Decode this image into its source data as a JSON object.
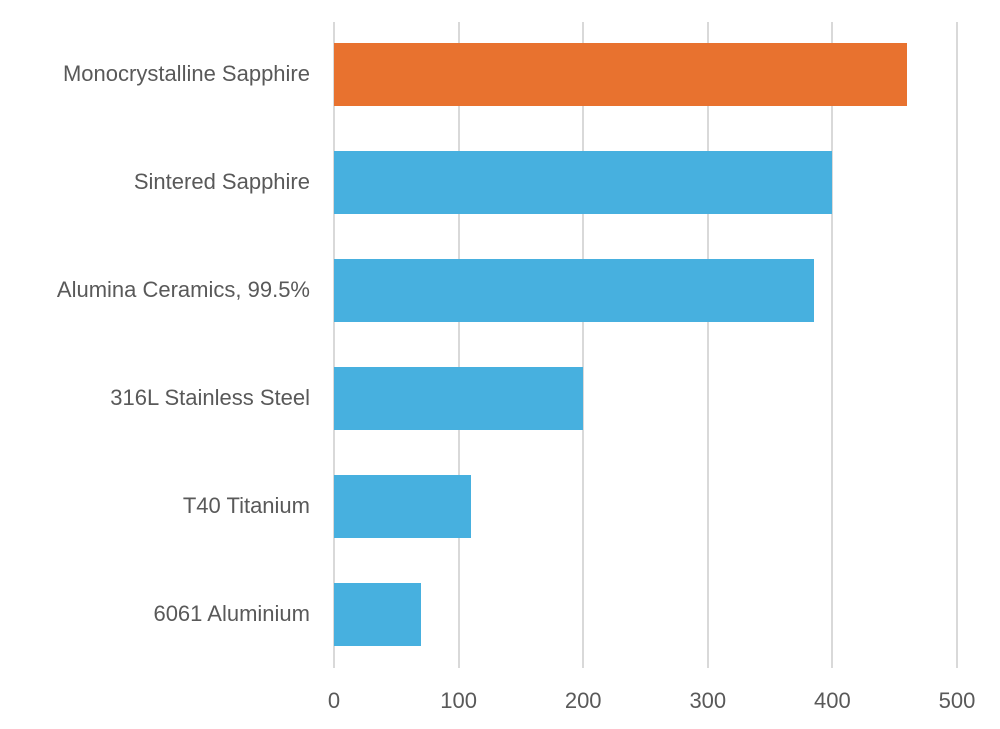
{
  "chart_data": {
    "type": "bar",
    "orientation": "horizontal",
    "title": "",
    "xlabel": "",
    "ylabel": "",
    "categories": [
      "Monocrystalline Sapphire",
      "Sintered Sapphire",
      "Alumina Ceramics, 99.5%",
      "316L Stainless Steel",
      "T40 Titanium",
      "6061 Aluminium"
    ],
    "values": [
      460,
      400,
      385,
      200,
      110,
      70
    ],
    "colors": [
      "#e8722f",
      "#47b0df",
      "#47b0df",
      "#47b0df",
      "#47b0df",
      "#47b0df"
    ],
    "xlim": [
      0,
      500
    ],
    "xticks": [
      "0",
      "100",
      "200",
      "300",
      "400",
      "500"
    ],
    "grid": "vertical",
    "legend": "none"
  }
}
